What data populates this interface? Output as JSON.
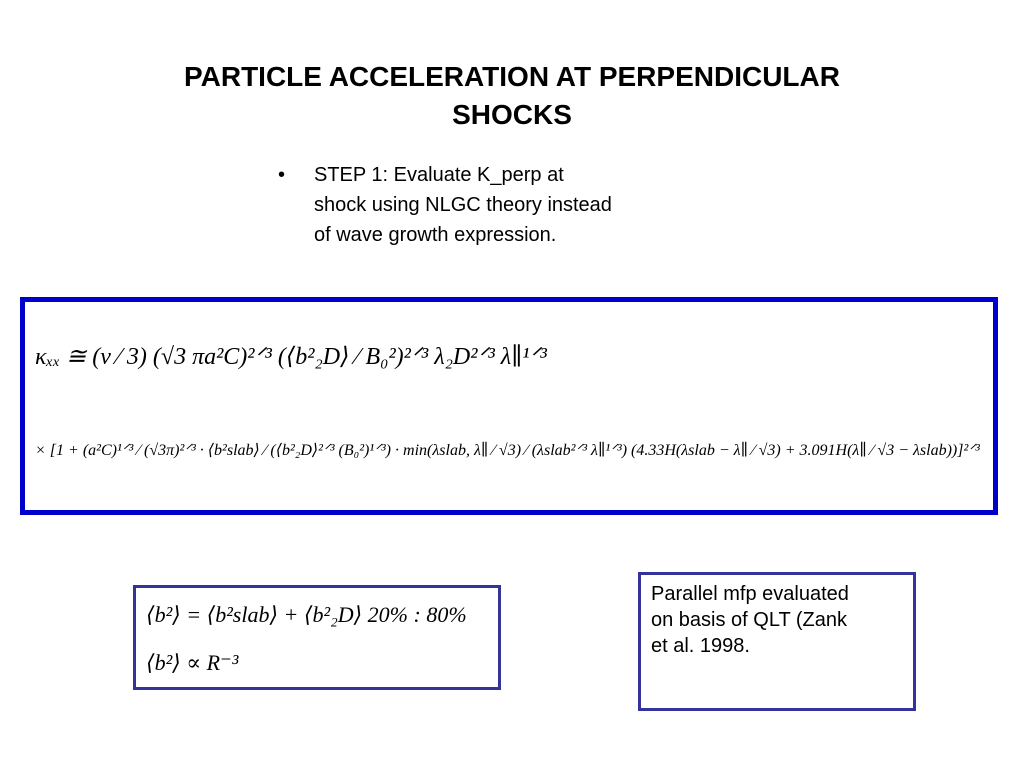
{
  "header": {
    "title_lines": [
      "PARTICLE ACCELERATION AT PERPENDICULAR",
      "SHOCKS"
    ]
  },
  "bullet": {
    "marker": "•",
    "lines": [
      "STEP 1: Evaluate K_perp at",
      "shock using NLGC theory instead",
      "of wave growth expression."
    ]
  },
  "equations": {
    "main": [
      "κₓₓ ≅ (v ⁄ 3) (√3 πa²C)²ᐟ³ (⟨b²₂D⟩ ⁄ B₀²)²ᐟ³  λ₂D²ᐟ³ λ∥¹ᐟ³",
      "× [1 + (a²C)¹ᐟ³ ⁄ (√3π)²ᐟ³ · ⟨b²slab⟩ ⁄ (⟨b²₂D⟩²ᐟ³ (B₀²)¹ᐟ³) · min(λslab, λ∥ ⁄ √3) ⁄ (λslab²ᐟ³ λ∥¹ᐟ³) (4.33H(λslab − λ∥ ⁄ √3) + 3.091H(λ∥ ⁄ √3 − λslab))]²ᐟ³"
    ],
    "turbulence": [
      "⟨b²⟩ = ⟨b²slab⟩ + ⟨b²₂D⟩     20% : 80%",
      "⟨b²⟩ ∝ R⁻³"
    ]
  },
  "note": {
    "lines": [
      "Parallel mfp evaluated",
      "on basis of QLT (Zank",
      "et al. 1998."
    ]
  }
}
